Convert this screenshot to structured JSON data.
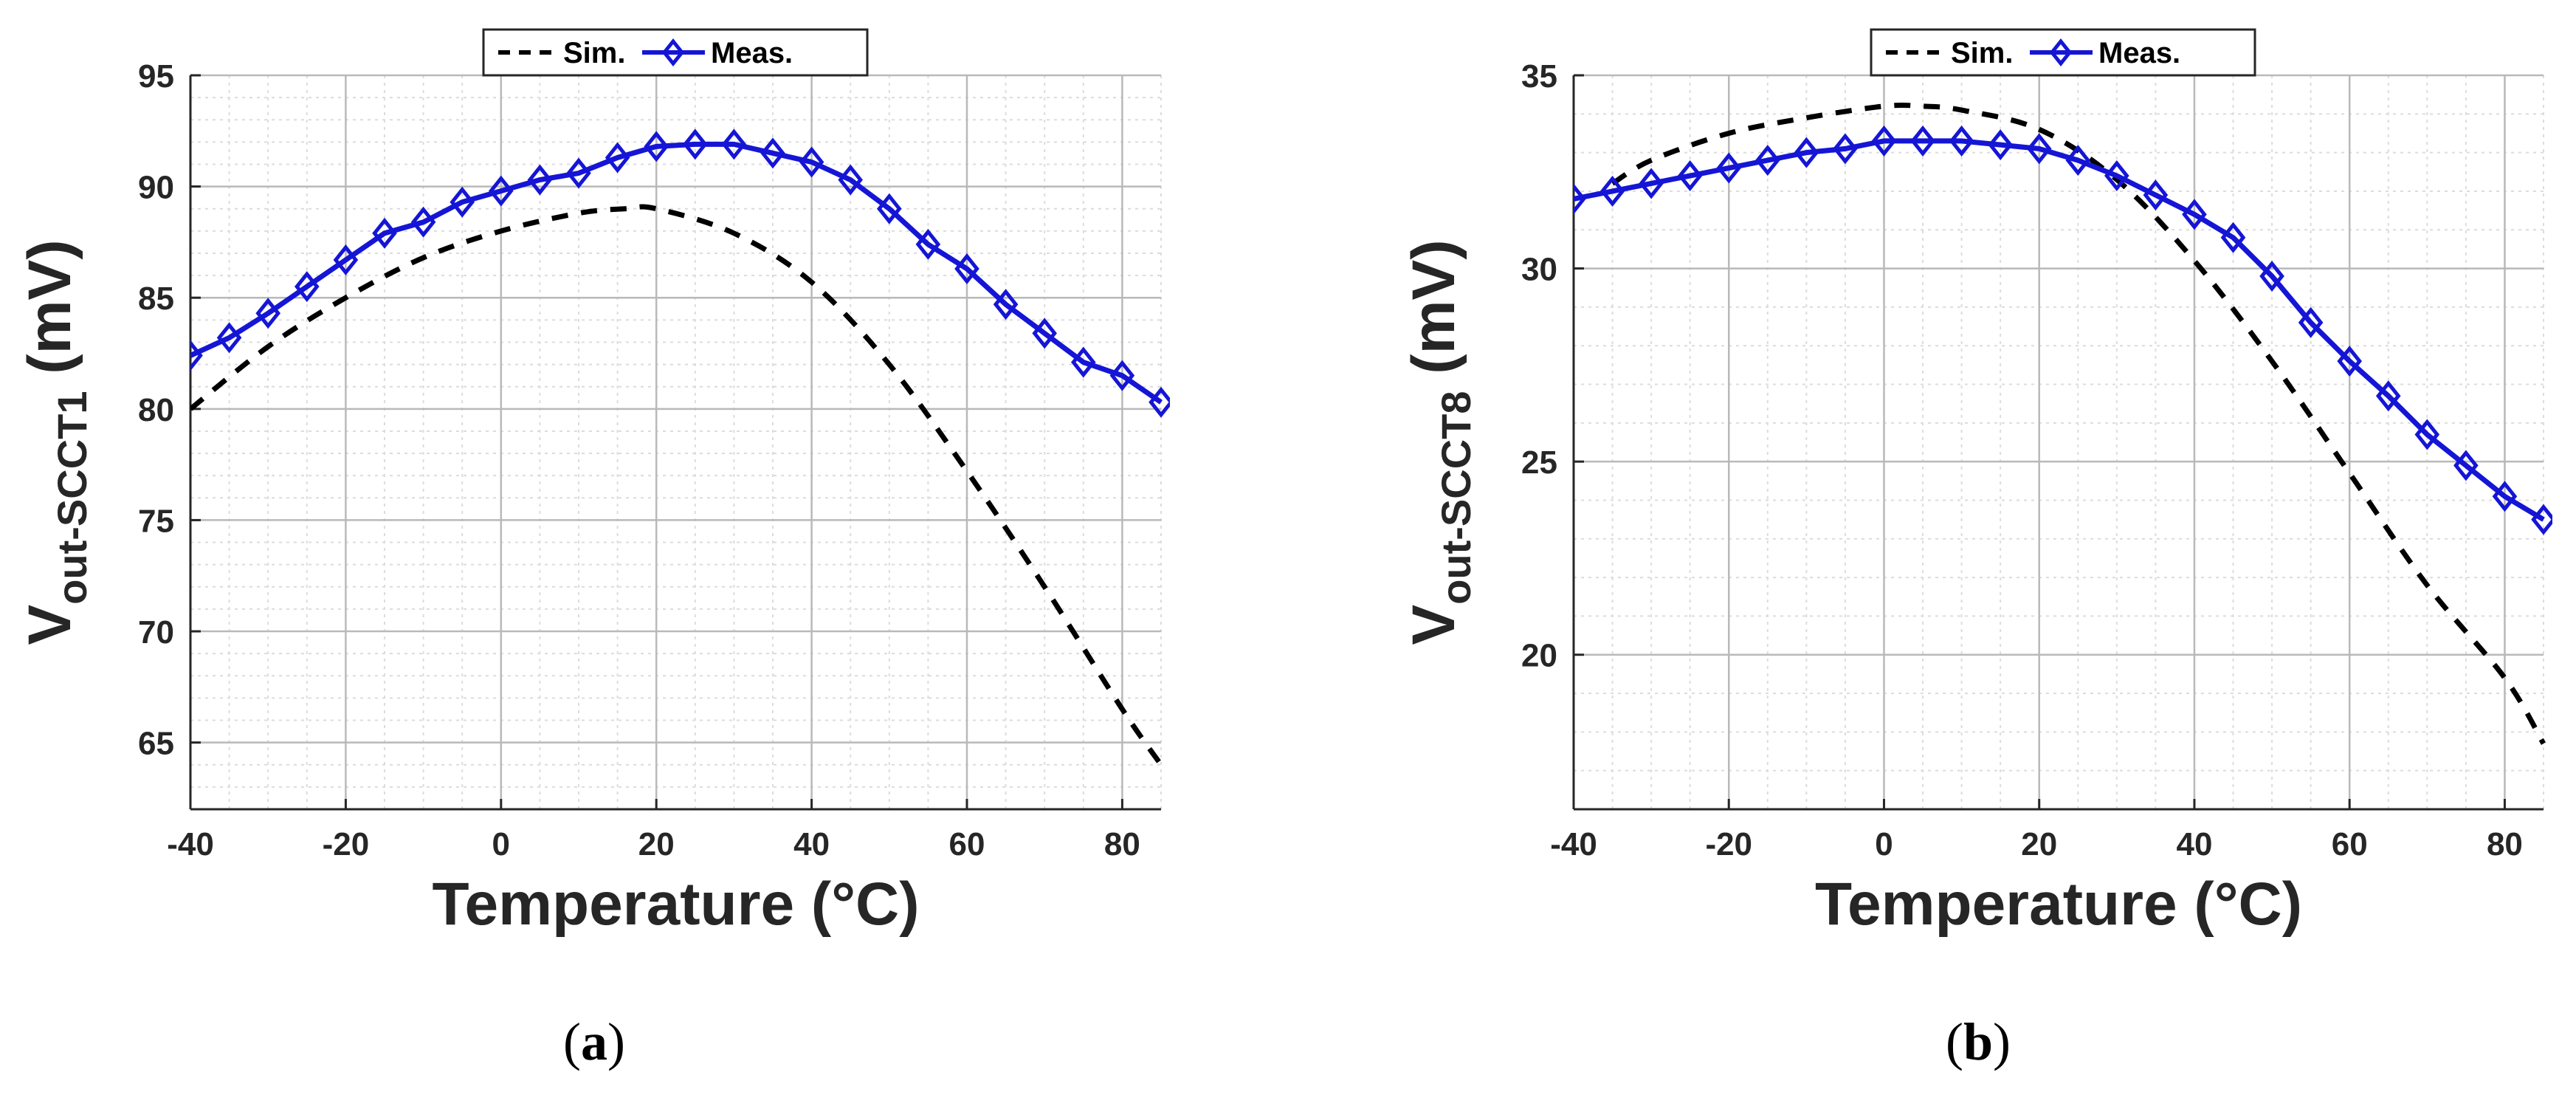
{
  "chart_data": [
    {
      "type": "line",
      "caption_letter": "a",
      "xlabel": "Temperature (°C)",
      "ylabel_main": "V",
      "ylabel_sub": "out-SCCT1",
      "ylabel_unit": " (mV)",
      "xlim": [
        -40,
        85
      ],
      "ylim": [
        62,
        95
      ],
      "xticks": [
        -40,
        -20,
        0,
        20,
        40,
        60,
        80
      ],
      "yticks": [
        65,
        70,
        75,
        80,
        85,
        90,
        95
      ],
      "grid": true,
      "legend_position": "top-center",
      "series": [
        {
          "name": "Sim.",
          "style": "dashed",
          "color": "#000000",
          "marker": "none",
          "x": [
            -40,
            -30,
            -20,
            -10,
            0,
            10,
            16,
            20,
            30,
            40,
            50,
            60,
            70,
            80,
            85
          ],
          "y": [
            80.0,
            82.8,
            85.0,
            86.8,
            88.0,
            88.8,
            89.0,
            89.0,
            87.9,
            85.7,
            82.0,
            77.2,
            72.0,
            66.5,
            64.0
          ]
        },
        {
          "name": "Meas.",
          "style": "solid",
          "color": "#1515d6",
          "marker": "diamond",
          "x": [
            -40,
            -35,
            -30,
            -25,
            -20,
            -15,
            -10,
            -5,
            0,
            5,
            10,
            15,
            20,
            25,
            30,
            35,
            40,
            45,
            50,
            55,
            60,
            65,
            70,
            75,
            80,
            85
          ],
          "y": [
            82.4,
            83.2,
            84.3,
            85.5,
            86.7,
            87.9,
            88.4,
            89.3,
            89.8,
            90.3,
            90.6,
            91.3,
            91.8,
            91.9,
            91.9,
            91.5,
            91.1,
            90.3,
            89.0,
            87.4,
            86.3,
            84.7,
            83.4,
            82.1,
            81.5,
            80.3
          ]
        }
      ]
    },
    {
      "type": "line",
      "caption_letter": "b",
      "xlabel": "Temperature (°C)",
      "ylabel_main": "V",
      "ylabel_sub": "out-SCCT8",
      "ylabel_unit": " (mV)",
      "xlim": [
        -40,
        85
      ],
      "ylim": [
        16,
        35
      ],
      "xticks": [
        -40,
        -20,
        0,
        20,
        40,
        60,
        80
      ],
      "yticks": [
        20,
        25,
        30,
        35
      ],
      "grid": true,
      "legend_position": "top-center",
      "series": [
        {
          "name": "Sim.",
          "style": "dashed",
          "color": "#000000",
          "marker": "none",
          "x": [
            -35,
            -30,
            -20,
            -10,
            0,
            5,
            10,
            20,
            30,
            40,
            50,
            60,
            70,
            80,
            85
          ],
          "y": [
            32.2,
            32.8,
            33.5,
            33.9,
            34.2,
            34.2,
            34.1,
            33.6,
            32.3,
            30.2,
            27.6,
            24.7,
            21.8,
            19.4,
            17.7
          ]
        },
        {
          "name": "Meas.",
          "style": "solid",
          "color": "#1515d6",
          "marker": "diamond",
          "x": [
            -40,
            -35,
            -30,
            -25,
            -20,
            -15,
            -10,
            -5,
            0,
            5,
            10,
            15,
            20,
            25,
            30,
            35,
            40,
            45,
            50,
            55,
            60,
            65,
            70,
            75,
            80,
            85
          ],
          "y": [
            31.8,
            32.0,
            32.2,
            32.4,
            32.6,
            32.8,
            33.0,
            33.1,
            33.3,
            33.3,
            33.3,
            33.2,
            33.1,
            32.8,
            32.4,
            31.9,
            31.4,
            30.8,
            29.8,
            28.6,
            27.6,
            26.7,
            25.7,
            24.9,
            24.1,
            23.5
          ]
        }
      ]
    }
  ]
}
